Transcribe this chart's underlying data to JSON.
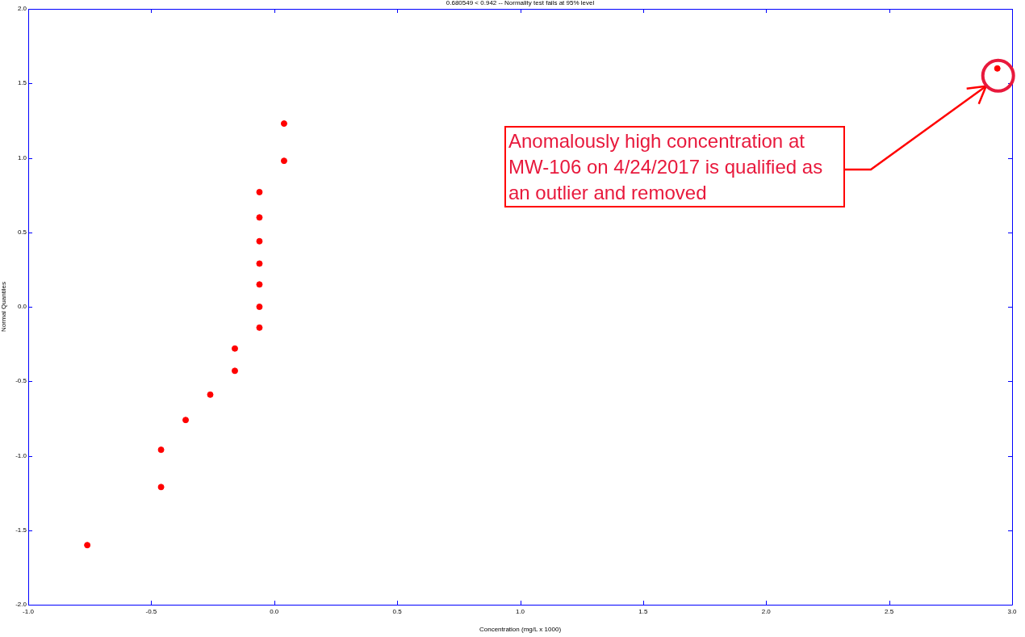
{
  "chart_data": {
    "type": "scatter",
    "title": "0.680549 < 0.942 -- Normality test fails at 95% level",
    "xlabel": "Concentration (mg/L x 1000)",
    "ylabel": "Normal Quantiles",
    "x": [
      -0.76,
      -0.46,
      -0.46,
      -0.36,
      -0.26,
      -0.16,
      -0.16,
      -0.06,
      -0.06,
      -0.06,
      -0.06,
      -0.06,
      -0.06,
      -0.06,
      0.04,
      0.04,
      2.94
    ],
    "series": [
      {
        "color": "#ff0000",
        "values": [
          -1.6,
          -1.21,
          -0.96,
          -0.76,
          -0.59,
          -0.43,
          -0.28,
          -0.14,
          0.0,
          0.15,
          0.29,
          0.44,
          0.6,
          0.77,
          0.98,
          1.23,
          1.6
        ]
      }
    ],
    "xlim": [
      -1,
      3
    ],
    "ylim": [
      -2,
      2
    ],
    "xticks": [
      {
        "value": -1,
        "label": "-1.0"
      },
      -0.5,
      {
        "value": 0,
        "label": "0.0"
      },
      0.5,
      {
        "value": 1,
        "label": "1.0"
      },
      1.5,
      {
        "value": 2,
        "label": "2.0"
      },
      2.5,
      {
        "value": 3,
        "label": "3.0"
      }
    ],
    "yticks": [
      {
        "value": -2,
        "label": "-2.0"
      },
      -1.5,
      {
        "value": -1,
        "label": "-1.0"
      },
      -0.5,
      {
        "value": 0,
        "label": "0.0"
      },
      0.5,
      {
        "value": 1,
        "label": "1.0"
      },
      1.5,
      {
        "value": 2,
        "label": "2.0"
      }
    ],
    "annotations": [
      "Anomalously high concentration at MW-106 on 4/24/2017 is qualified as an outlier and removed"
    ],
    "grid": false,
    "legend": false,
    "marker": "circle"
  }
}
